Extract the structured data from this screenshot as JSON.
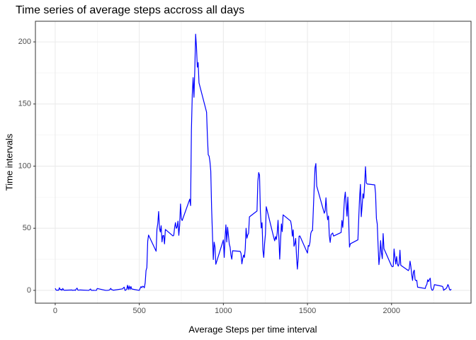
{
  "chart_data": {
    "type": "line",
    "title": "Time series of average steps accross all days",
    "x_label": "Average Steps per time interval",
    "y_label": "Time intervals",
    "xlim": [
      -117.75,
      2472.75
    ],
    "ylim": [
      -10.3,
      216.6
    ],
    "xticks": [
      0,
      500,
      1000,
      1500,
      2000
    ],
    "yticks": [
      0,
      50,
      100,
      150,
      200
    ],
    "xminor": [
      250,
      750,
      1250,
      1750,
      2250
    ],
    "yminor": [
      25,
      75,
      125,
      175
    ],
    "grid": true,
    "series": [
      {
        "color": "#0000ff",
        "x": [
          0,
          5,
          10,
          15,
          20,
          25,
          30,
          35,
          40,
          45,
          50,
          55,
          100,
          105,
          110,
          115,
          120,
          125,
          130,
          135,
          140,
          145,
          150,
          200,
          210,
          215,
          220,
          225,
          230,
          245,
          250,
          300,
          310,
          320,
          325,
          330,
          335,
          340,
          345,
          400,
          410,
          415,
          420,
          425,
          430,
          435,
          440,
          445,
          450,
          455,
          500,
          505,
          510,
          515,
          520,
          525,
          530,
          535,
          540,
          545,
          550,
          555,
          600,
          605,
          610,
          615,
          620,
          625,
          630,
          635,
          640,
          645,
          650,
          655,
          700,
          705,
          710,
          715,
          720,
          725,
          730,
          735,
          740,
          745,
          750,
          755,
          800,
          805,
          810,
          815,
          820,
          825,
          830,
          835,
          840,
          845,
          850,
          855,
          900,
          905,
          910,
          915,
          920,
          925,
          930,
          935,
          940,
          945,
          950,
          955,
          1000,
          1005,
          1010,
          1015,
          1020,
          1025,
          1030,
          1035,
          1040,
          1045,
          1050,
          1055,
          1100,
          1105,
          1110,
          1115,
          1120,
          1125,
          1130,
          1135,
          1140,
          1145,
          1150,
          1155,
          1200,
          1205,
          1210,
          1215,
          1220,
          1225,
          1230,
          1235,
          1240,
          1245,
          1250,
          1255,
          1300,
          1305,
          1310,
          1315,
          1320,
          1325,
          1330,
          1335,
          1340,
          1345,
          1350,
          1355,
          1400,
          1405,
          1410,
          1415,
          1420,
          1425,
          1430,
          1435,
          1440,
          1445,
          1450,
          1455,
          1500,
          1505,
          1510,
          1515,
          1520,
          1525,
          1530,
          1535,
          1540,
          1545,
          1550,
          1555,
          1600,
          1605,
          1610,
          1615,
          1620,
          1625,
          1630,
          1635,
          1640,
          1645,
          1650,
          1655,
          1700,
          1705,
          1710,
          1715,
          1720,
          1725,
          1730,
          1735,
          1740,
          1745,
          1750,
          1755,
          1800,
          1805,
          1810,
          1815,
          1820,
          1825,
          1830,
          1835,
          1840,
          1845,
          1850,
          1855,
          1900,
          1905,
          1910,
          1915,
          1920,
          1925,
          1930,
          1935,
          1940,
          1945,
          1950,
          1955,
          2000,
          2005,
          2010,
          2015,
          2020,
          2025,
          2030,
          2035,
          2040,
          2045,
          2050,
          2055,
          2100,
          2105,
          2110,
          2115,
          2120,
          2125,
          2130,
          2135,
          2140,
          2145,
          2150,
          2155,
          2200,
          2205,
          2210,
          2215,
          2220,
          2225,
          2230,
          2235,
          2240,
          2245,
          2250,
          2255,
          2300,
          2305,
          2310,
          2315,
          2320,
          2325,
          2330,
          2335,
          2340,
          2345,
          2350,
          2355
        ],
        "values": [
          1.7,
          0.3,
          0.1,
          0.2,
          0.1,
          2.1,
          0.5,
          0.9,
          0,
          1.5,
          0.3,
          0.1,
          0.3,
          0,
          0.2,
          0.3,
          0,
          1.1,
          1.8,
          0.2,
          0.2,
          0.3,
          0.3,
          0,
          1.1,
          0,
          0,
          0.1,
          0,
          0,
          1.5,
          0,
          0,
          0.2,
          0.6,
          1.6,
          0.6,
          0.5,
          0.1,
          1.2,
          2.6,
          0,
          0.3,
          0.9,
          4.1,
          0.7,
          3.5,
          0.8,
          3.1,
          1.1,
          0,
          1.6,
          3,
          2.2,
          3.3,
          3,
          2.1,
          6.1,
          16,
          18.3,
          39.5,
          44.5,
          31.5,
          49.3,
          53.8,
          63.5,
          50,
          47,
          52,
          39,
          44,
          44.2,
          37.4,
          49,
          43.8,
          44.4,
          50.5,
          54.5,
          49.9,
          51,
          55.7,
          44.3,
          52.3,
          69.5,
          57.8,
          56.2,
          73.4,
          68.2,
          129.4,
          157.5,
          171.2,
          155.4,
          177.3,
          206.2,
          195.9,
          179.6,
          183.4,
          167,
          143.5,
          124,
          109.1,
          108.1,
          103.7,
          95.97,
          66.2,
          45.2,
          24.8,
          38.8,
          35,
          21,
          40.6,
          26.5,
          42.4,
          52.7,
          38.9,
          50.8,
          44.3,
          37.4,
          34.7,
          28.3,
          25.1,
          31.9,
          31.4,
          29.7,
          21.3,
          25.5,
          28.4,
          26.5,
          33.4,
          49.98,
          42,
          44.6,
          46,
          59.2,
          63.9,
          87.7,
          94.8,
          92.8,
          63.4,
          50.2,
          54.5,
          32.4,
          26.5,
          37.7,
          45.1,
          67.3,
          42.3,
          39.9,
          43.3,
          40.98,
          46.2,
          56.4,
          42.8,
          25.1,
          39.97,
          53.5,
          47.3,
          60.8,
          55.8,
          51.96,
          43.6,
          48.7,
          35.5,
          37.5,
          41.8,
          27.5,
          17.1,
          26.1,
          43.6,
          43.8,
          30,
          36.1,
          35.5,
          38.8,
          45.96,
          47.8,
          48.1,
          65.3,
          82.9,
          98.7,
          102.1,
          83.96,
          62.1,
          64.1,
          74.5,
          63.2,
          56.9,
          59.8,
          43.9,
          38.6,
          44.7,
          45.5,
          46.2,
          43.7,
          46.6,
          56.3,
          50.7,
          61.2,
          73.4,
          79.1,
          68.9,
          59.7,
          75.1,
          56.5,
          34.8,
          37.5,
          40.7,
          58,
          74.7,
          85.3,
          59.3,
          67.8,
          77.7,
          74.2,
          85.3,
          99.5,
          86.6,
          85.6,
          84.9,
          77.8,
          58,
          53.4,
          36.3,
          20.7,
          27.4,
          40,
          30.2,
          25.5,
          45.7,
          33.5,
          19.6,
          19,
          19.3,
          33.3,
          26.8,
          21.2,
          27.3,
          21.3,
          19.5,
          21.3,
          32.3,
          20.2,
          15.9,
          17.2,
          23.5,
          19.2,
          12.5,
          8,
          14.7,
          16.3,
          8.7,
          7.8,
          8.1,
          2.6,
          1.5,
          3.7,
          4.8,
          8.5,
          7.1,
          8.7,
          9.8,
          2.2,
          0.3,
          0.1,
          1.6,
          4.6,
          3.3,
          2.8,
          0,
          0.8,
          1,
          1.6,
          2.6,
          4.7,
          3.3,
          0.6,
          0.2,
          1.1
        ]
      }
    ]
  }
}
